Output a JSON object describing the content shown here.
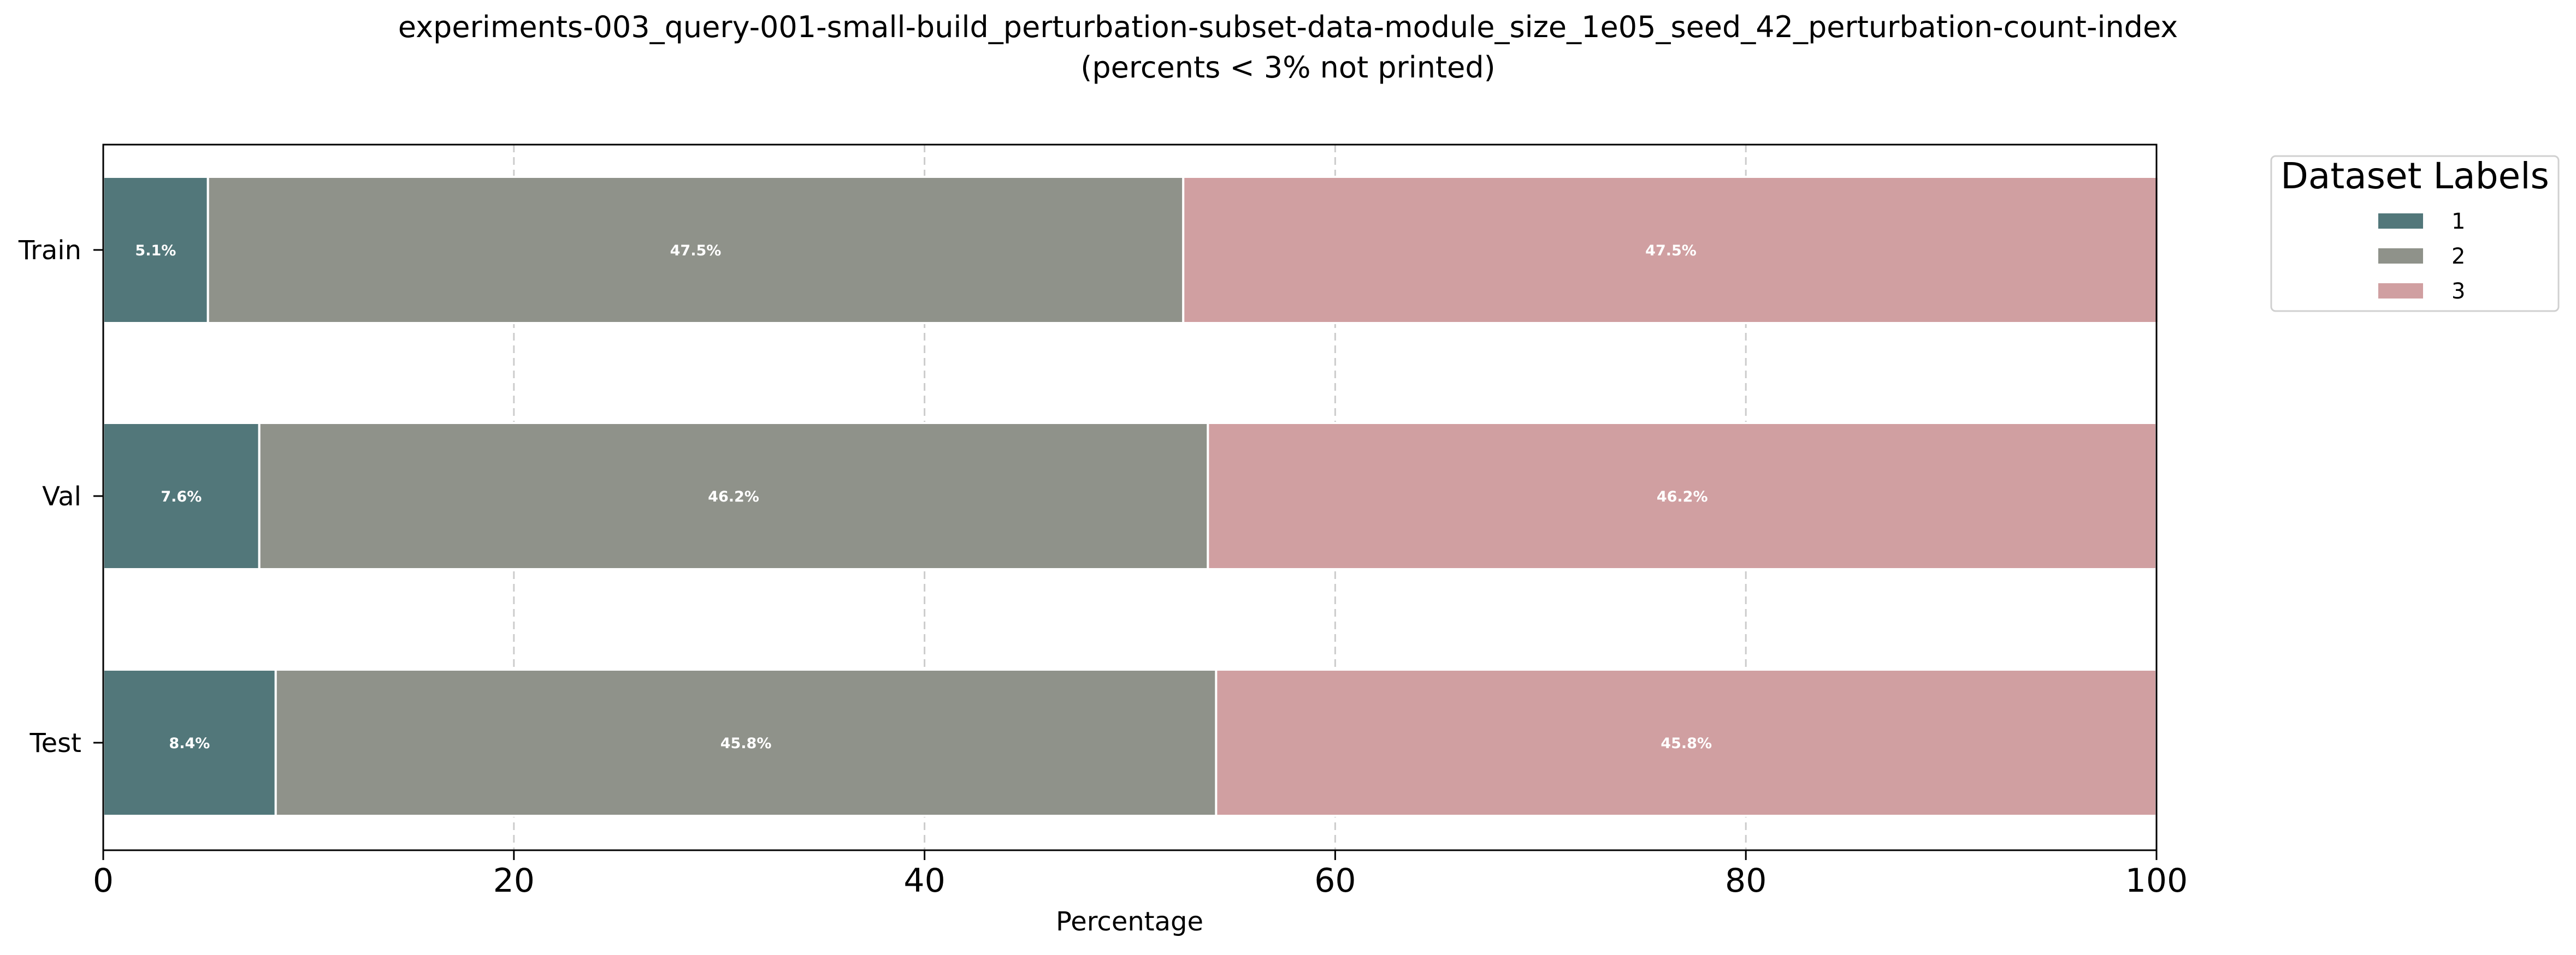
{
  "chart_data": {
    "type": "bar",
    "orientation": "horizontal",
    "stacked": true,
    "title": "experiments-003_query-001-small-build_perturbation-subset-data-module_size_1e05_seed_42_perturbation-count-index",
    "subtitle": "(percents < 3% not printed)",
    "xlabel": "Percentage",
    "ylabel": "",
    "xlim": [
      0,
      100
    ],
    "x_ticks": [
      0,
      20,
      40,
      60,
      80,
      100
    ],
    "grid": "x-axis dashed",
    "categories": [
      "Train",
      "Val",
      "Test"
    ],
    "series": [
      {
        "name": "1",
        "color": "#52777a",
        "values": [
          5.1,
          7.6,
          8.4
        ],
        "labels": [
          "5.1%",
          "7.6%",
          "8.4%"
        ]
      },
      {
        "name": "2",
        "color": "#8f928a",
        "values": [
          47.5,
          46.2,
          45.8
        ],
        "labels": [
          "47.5%",
          "46.2%",
          "45.8%"
        ]
      },
      {
        "name": "3",
        "color": "#d09fa1",
        "values": [
          47.5,
          46.2,
          45.8
        ],
        "labels": [
          "47.5%",
          "46.2%",
          "45.8%"
        ]
      }
    ],
    "legend": {
      "title": "Dataset Labels",
      "placement": "outside-right"
    }
  }
}
